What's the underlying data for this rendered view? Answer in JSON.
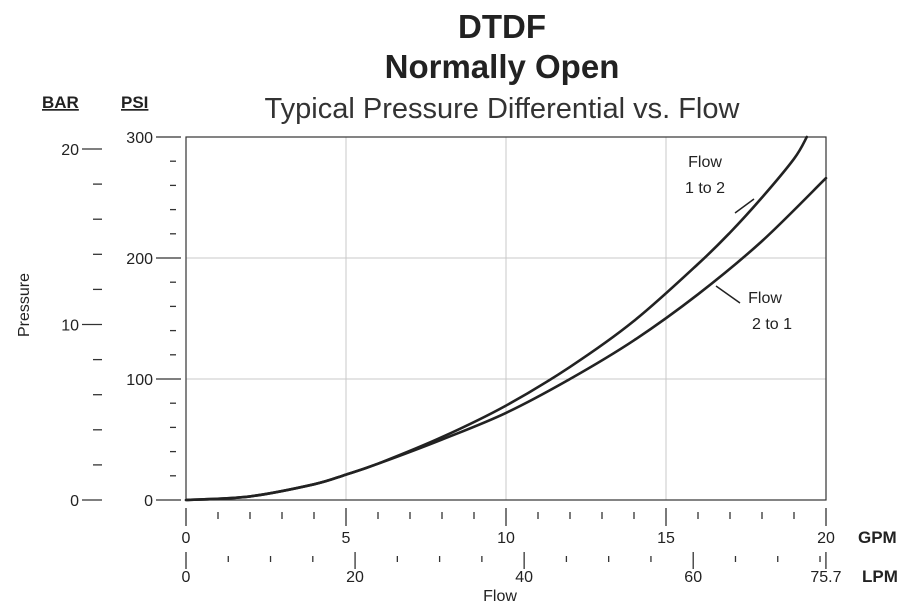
{
  "chart_data": {
    "type": "line",
    "title": "DTDF",
    "subtitle": "Normally Open",
    "subtitle2": "Typical Pressure Differential vs. Flow",
    "xlabel": "Flow",
    "ylabel": "Pressure",
    "x_unit_primary": "GPM",
    "x_unit_secondary": "LPM",
    "y_unit_primary": "PSI",
    "y_unit_secondary": "BAR",
    "xlim": [
      0,
      20
    ],
    "ylim": [
      0,
      300
    ],
    "x_ticks": [
      "0",
      "5",
      "10",
      "15",
      "20"
    ],
    "x_ticks_secondary": [
      "0",
      "20",
      "40",
      "60",
      "75.7"
    ],
    "y_ticks": [
      "0",
      "100",
      "200",
      "300"
    ],
    "y_ticks_secondary": [
      "0",
      "10",
      "20"
    ],
    "grid": true,
    "series": [
      {
        "name": "Flow 1 to 2",
        "x": [
          0,
          2,
          4,
          5,
          6,
          8,
          10,
          12,
          14,
          16,
          17,
          18,
          19,
          19.4
        ],
        "y": [
          0,
          3,
          13,
          21,
          30,
          52,
          78,
          110,
          148,
          195,
          221,
          250,
          282,
          300
        ]
      },
      {
        "name": "Flow 2 to 1",
        "x": [
          0,
          2,
          4,
          5,
          6,
          8,
          10,
          12,
          14,
          16,
          18,
          20
        ],
        "y": [
          0,
          3,
          13,
          21,
          30,
          50,
          72,
          100,
          132,
          170,
          214,
          266
        ]
      }
    ],
    "annotations": [
      {
        "series": 0,
        "lines": [
          "Flow",
          "1 to 2"
        ]
      },
      {
        "series": 1,
        "lines": [
          "Flow",
          "2 to 1"
        ]
      }
    ],
    "colors": {
      "line": "#222222",
      "grid": "#c8c8c8",
      "axis": "#333333"
    }
  }
}
